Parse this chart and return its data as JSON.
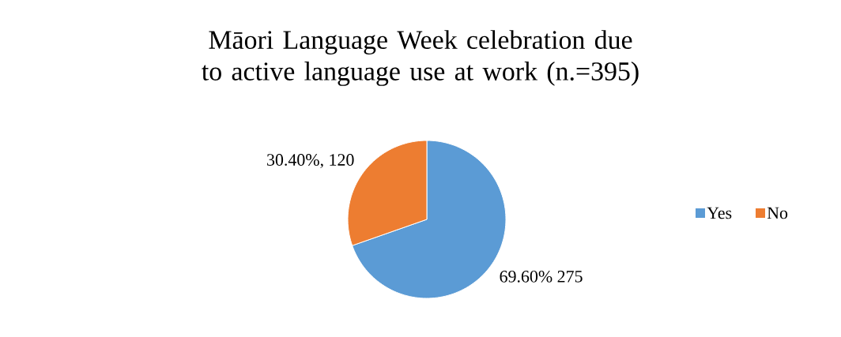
{
  "chart_data": {
    "type": "pie",
    "title": "Māori Language Week celebration due to active language use at work (n.=395)",
    "categories": [
      "Yes",
      "No"
    ],
    "values": [
      275,
      120
    ],
    "colors": [
      "#5b9bd5",
      "#ed7d31"
    ],
    "value_labels": [
      "69.60% 275",
      "30.40%, 120"
    ],
    "legend": "right"
  }
}
